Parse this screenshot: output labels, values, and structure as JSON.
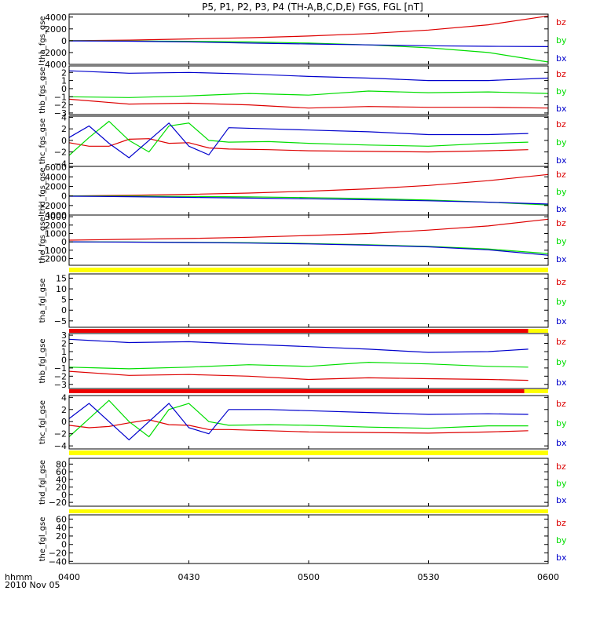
{
  "chart_data": {
    "type": "line",
    "title": "P5, P1, P2, P3, P4 (TH-A,B,C,D,E) FGS, FGL [nT]",
    "x_axis": {
      "time_label": "hhmm",
      "date_label": "2010 Nov 05",
      "range": [
        "0400",
        "0600"
      ],
      "ticks": [
        "0400",
        "0430",
        "0500",
        "0530",
        "0600"
      ]
    },
    "legend": [
      "bz",
      "by",
      "bx"
    ],
    "colors": {
      "bz": "#dd0000",
      "by": "#00dd00",
      "bx": "#0000cc",
      "bar_yellow": "#ffff00",
      "bar_red": "#ee0000",
      "frame": "#000000"
    },
    "panels": [
      {
        "ylabel": "tha_fgs_gse",
        "ylim": [
          -4000,
          4500
        ],
        "yticks": [
          4000,
          2000,
          0,
          -2000,
          -4000
        ],
        "yticklabels": [
          "4000",
          "2000",
          "0",
          "−2000",
          "−4000"
        ],
        "series": [
          {
            "name": "bz",
            "x": [
              "0400",
              "0415",
              "0430",
              "0445",
              "0500",
              "0515",
              "0530",
              "0545",
              "0600"
            ],
            "y": [
              0,
              100,
              300,
              500,
              800,
              1200,
              1800,
              2700,
              4200
            ]
          },
          {
            "name": "by",
            "x": [
              "0400",
              "0415",
              "0430",
              "0445",
              "0500",
              "0515",
              "0530",
              "0545",
              "0600"
            ],
            "y": [
              0,
              -40,
              -100,
              -200,
              -400,
              -700,
              -1200,
              -2000,
              -3600
            ]
          },
          {
            "name": "bx",
            "x": [
              "0400",
              "0415",
              "0430",
              "0445",
              "0500",
              "0515",
              "0530",
              "0545",
              "0600"
            ],
            "y": [
              -30,
              -80,
              -200,
              -400,
              -550,
              -700,
              -850,
              -950,
              -1000
            ]
          }
        ]
      },
      {
        "ylabel": "thb_fgs_gse",
        "ylim": [
          -3.2,
          2.8
        ],
        "yticks": [
          2,
          1,
          0,
          -1,
          -2,
          -3
        ],
        "yticklabels": [
          "2",
          "1",
          "0",
          "−1",
          "−2",
          "−3"
        ],
        "series": [
          {
            "name": "bz",
            "x": [
              "0400",
              "0415",
              "0430",
              "0445",
              "0500",
              "0515",
              "0530",
              "0545",
              "0600"
            ],
            "y": [
              -1.3,
              -1.9,
              -1.8,
              -2.0,
              -2.4,
              -2.2,
              -2.3,
              -2.3,
              -2.4
            ]
          },
          {
            "name": "by",
            "x": [
              "0400",
              "0415",
              "0430",
              "0445",
              "0500",
              "0515",
              "0530",
              "0545",
              "0600"
            ],
            "y": [
              -1.0,
              -1.1,
              -0.9,
              -0.6,
              -0.8,
              -0.3,
              -0.5,
              -0.4,
              -0.6
            ]
          },
          {
            "name": "bx",
            "x": [
              "0400",
              "0415",
              "0430",
              "0445",
              "0500",
              "0515",
              "0530",
              "0545",
              "0600"
            ],
            "y": [
              2.2,
              1.9,
              2.0,
              1.8,
              1.5,
              1.3,
              1.0,
              1.0,
              1.3
            ]
          }
        ]
      },
      {
        "ylabel": "thc_fgs_gse",
        "ylim": [
          -4.5,
          4.2
        ],
        "yticks": [
          4,
          2,
          0,
          -2,
          -4
        ],
        "yticklabels": [
          "4",
          "2",
          "0",
          "−2",
          "−4"
        ],
        "series": [
          {
            "name": "bz",
            "x": [
              "0400",
              "0405",
              "0410",
              "0415",
              "0420",
              "0425",
              "0430",
              "0435",
              "0440",
              "0450",
              "0500",
              "0515",
              "0530",
              "0545",
              "0555"
            ],
            "y": [
              -0.4,
              -1.0,
              -1.0,
              0.2,
              0.3,
              -0.5,
              -0.4,
              -1.3,
              -1.5,
              -1.6,
              -1.8,
              -1.9,
              -2.0,
              -1.8,
              -1.6
            ]
          },
          {
            "name": "by",
            "x": [
              "0400",
              "0405",
              "0410",
              "0415",
              "0420",
              "0425",
              "0430",
              "0435",
              "0440",
              "0450",
              "0500",
              "0515",
              "0530",
              "0545",
              "0555"
            ],
            "y": [
              -2.6,
              0.5,
              3.3,
              0.0,
              -2.0,
              2.5,
              3.0,
              0.0,
              -0.3,
              -0.2,
              -0.5,
              -0.8,
              -1.0,
              -0.5,
              -0.3
            ]
          },
          {
            "name": "bx",
            "x": [
              "0400",
              "0405",
              "0410",
              "0415",
              "0420",
              "0425",
              "0430",
              "0435",
              "0440",
              "0450",
              "0500",
              "0515",
              "0530",
              "0545",
              "0555"
            ],
            "y": [
              0.5,
              2.5,
              -0.5,
              -3.0,
              0.0,
              3.0,
              -1.0,
              -2.5,
              2.2,
              2.0,
              1.8,
              1.5,
              1.0,
              1.0,
              1.2
            ]
          }
        ]
      },
      {
        "ylabel": "thd_fgs_gse",
        "ylim": [
          -4000,
          6200
        ],
        "yticks": [
          6000,
          4000,
          2000,
          0,
          -2000,
          -4000
        ],
        "yticklabels": [
          "6000",
          "4000",
          "2000",
          "0",
          "−2000",
          "−4000"
        ],
        "series": [
          {
            "name": "bz",
            "x": [
              "0400",
              "0415",
              "0430",
              "0445",
              "0500",
              "0515",
              "0530",
              "0545",
              "0600"
            ],
            "y": [
              0,
              150,
              350,
              600,
              1000,
              1500,
              2200,
              3200,
              4500
            ]
          },
          {
            "name": "by",
            "x": [
              "0400",
              "0415",
              "0430",
              "0445",
              "0500",
              "0515",
              "0530",
              "0545",
              "0600"
            ],
            "y": [
              0,
              -30,
              -100,
              -200,
              -350,
              -550,
              -850,
              -1300,
              -1900
            ]
          },
          {
            "name": "bx",
            "x": [
              "0400",
              "0415",
              "0430",
              "0445",
              "0500",
              "0515",
              "0530",
              "0545",
              "0600"
            ],
            "y": [
              -50,
              -150,
              -300,
              -450,
              -600,
              -800,
              -1000,
              -1300,
              -1700
            ]
          }
        ]
      },
      {
        "ylabel": "the_fgs_gse",
        "ylim": [
          -2800,
          3200
        ],
        "yticks": [
          3000,
          2000,
          1000,
          0,
          -1000,
          -2000
        ],
        "yticklabels": [
          "3000",
          "2000",
          "1000",
          "0",
          "−1000",
          "−2000"
        ],
        "series": [
          {
            "name": "bz",
            "x": [
              "0400",
              "0415",
              "0430",
              "0445",
              "0500",
              "0515",
              "0530",
              "0545",
              "0600"
            ],
            "y": [
              200,
              300,
              400,
              550,
              750,
              1000,
              1400,
              1900,
              2700
            ]
          },
          {
            "name": "by",
            "x": [
              "0400",
              "0415",
              "0430",
              "0445",
              "0500",
              "0515",
              "0530",
              "0545",
              "0600"
            ],
            "y": [
              0,
              -20,
              -50,
              -100,
              -200,
              -350,
              -550,
              -850,
              -1400
            ]
          },
          {
            "name": "bx",
            "x": [
              "0400",
              "0415",
              "0430",
              "0445",
              "0500",
              "0515",
              "0530",
              "0545",
              "0600"
            ],
            "y": [
              0,
              -30,
              -80,
              -150,
              -250,
              -400,
              -600,
              -950,
              -1600
            ]
          }
        ]
      },
      {
        "ylabel": "tha_fgl_gse",
        "ylim": [
          -8,
          17
        ],
        "yticks": [
          15,
          10,
          5,
          0,
          -5
        ],
        "yticklabels": [
          "15",
          "10",
          "5",
          "0",
          "−5"
        ],
        "series": []
      },
      {
        "ylabel": "thb_fgl_gse",
        "ylim": [
          -3.5,
          3.2
        ],
        "yticks": [
          3,
          2,
          1,
          0,
          -1,
          -2,
          -3
        ],
        "yticklabels": [
          "3",
          "2",
          "1",
          "0",
          "−1",
          "−2",
          "−3"
        ],
        "series": [
          {
            "name": "bz",
            "x": [
              "0400",
              "0415",
              "0430",
              "0445",
              "0500",
              "0515",
              "0530",
              "0545",
              "0555"
            ],
            "y": [
              -1.4,
              -1.9,
              -1.8,
              -2.0,
              -2.4,
              -2.2,
              -2.3,
              -2.4,
              -2.5
            ]
          },
          {
            "name": "by",
            "x": [
              "0400",
              "0415",
              "0430",
              "0445",
              "0500",
              "0515",
              "0530",
              "0545",
              "0555"
            ],
            "y": [
              -0.9,
              -1.1,
              -0.9,
              -0.6,
              -0.8,
              -0.3,
              -0.5,
              -0.8,
              -0.9
            ]
          },
          {
            "name": "bx",
            "x": [
              "0400",
              "0415",
              "0430",
              "0445",
              "0500",
              "0515",
              "0530",
              "0545",
              "0555"
            ],
            "y": [
              2.5,
              2.1,
              2.2,
              1.9,
              1.6,
              1.3,
              0.9,
              1.0,
              1.3
            ]
          }
        ]
      },
      {
        "ylabel": "thc_fgl_gse",
        "ylim": [
          -4.5,
          4.3
        ],
        "yticks": [
          4,
          2,
          0,
          -2,
          -4
        ],
        "yticklabels": [
          "4",
          "2",
          "0",
          "−2",
          "−4"
        ],
        "series": [
          {
            "name": "bz",
            "x": [
              "0400",
              "0405",
              "0410",
              "0415",
              "0420",
              "0425",
              "0430",
              "0435",
              "0440",
              "0450",
              "0500",
              "0515",
              "0530",
              "0545",
              "0555"
            ],
            "y": [
              -0.6,
              -1.0,
              -0.8,
              -0.2,
              0.3,
              -0.5,
              -0.6,
              -1.3,
              -1.3,
              -1.5,
              -1.7,
              -1.8,
              -1.9,
              -1.7,
              -1.5
            ]
          },
          {
            "name": "by",
            "x": [
              "0400",
              "0405",
              "0410",
              "0415",
              "0420",
              "0425",
              "0430",
              "0435",
              "0440",
              "0450",
              "0500",
              "0515",
              "0530",
              "0545",
              "0555"
            ],
            "y": [
              -2.5,
              0.5,
              3.5,
              0.0,
              -2.5,
              2.0,
              3.0,
              0.0,
              -0.6,
              -0.5,
              -0.6,
              -0.9,
              -1.1,
              -0.7,
              -0.7
            ]
          },
          {
            "name": "bx",
            "x": [
              "0400",
              "0405",
              "0410",
              "0415",
              "0420",
              "0425",
              "0430",
              "0435",
              "0440",
              "0450",
              "0500",
              "0515",
              "0530",
              "0545",
              "0555"
            ],
            "y": [
              0.5,
              3.0,
              0.0,
              -3.0,
              0.0,
              3.0,
              -1.0,
              -2.0,
              2.0,
              2.0,
              1.8,
              1.5,
              1.2,
              1.3,
              1.2
            ]
          }
        ]
      },
      {
        "ylabel": "thd_fgl_gse",
        "ylim": [
          -30,
          95
        ],
        "yticks": [
          80,
          60,
          40,
          20,
          0,
          -20
        ],
        "yticklabels": [
          "80",
          "60",
          "40",
          "20",
          "0",
          "−20"
        ],
        "series": []
      },
      {
        "ylabel": "the_fgl_gse",
        "ylim": [
          -45,
          70
        ],
        "yticks": [
          60,
          40,
          20,
          0,
          -20,
          -40
        ],
        "yticklabels": [
          "60",
          "40",
          "20",
          "0",
          "−20",
          "−40"
        ],
        "series": []
      }
    ],
    "status_bars": [
      {
        "after_panel": 4,
        "segments": [
          {
            "color": "yellow",
            "from": "0400",
            "to": "0600"
          }
        ]
      },
      {
        "after_panel": 5,
        "segments": [
          {
            "color": "red",
            "from": "0400",
            "to": "0555"
          },
          {
            "color": "yellow",
            "from": "0555",
            "to": "0600"
          }
        ]
      },
      {
        "after_panel": 6,
        "segments": [
          {
            "color": "red",
            "from": "0400",
            "to": "0554"
          },
          {
            "color": "yellow",
            "from": "0554",
            "to": "0600"
          }
        ]
      },
      {
        "after_panel": 7,
        "segments": [
          {
            "color": "yellow",
            "from": "0400",
            "to": "0600"
          }
        ]
      },
      {
        "after_panel": 8,
        "segments": [
          {
            "color": "yellow",
            "from": "0400",
            "to": "0600"
          }
        ]
      }
    ]
  }
}
